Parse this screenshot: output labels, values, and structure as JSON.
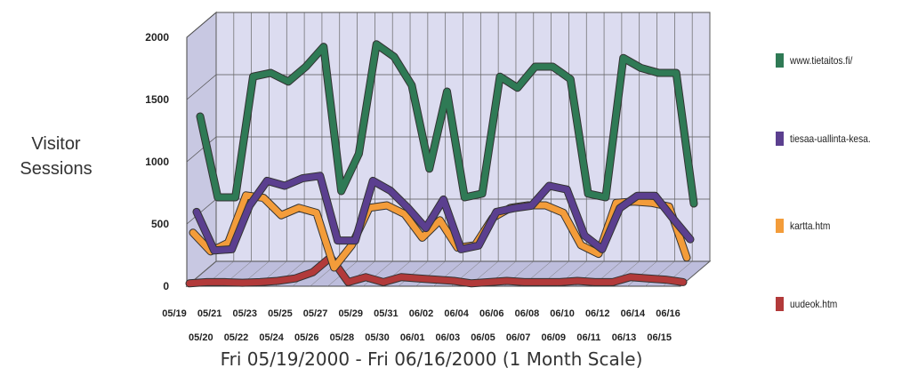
{
  "chart_data": {
    "type": "line",
    "ylabel": "Visitor\nSessions",
    "xlabel": "Fri 05/19/2000 - Fri 06/16/2000 (1 Month Scale)",
    "ylim": [
      0,
      2000
    ],
    "yticks": [
      0,
      500,
      1000,
      1500,
      2000
    ],
    "grid": true,
    "legend_position": "right",
    "style": "3d",
    "categories": [
      "05/19",
      "05/20",
      "05/21",
      "05/22",
      "05/23",
      "05/24",
      "05/25",
      "05/26",
      "05/27",
      "05/28",
      "05/29",
      "05/30",
      "05/31",
      "06/01",
      "06/02",
      "06/03",
      "06/04",
      "06/05",
      "06/06",
      "06/07",
      "06/08",
      "06/09",
      "06/10",
      "06/11",
      "06/12",
      "06/13",
      "06/14",
      "06/15",
      "06/16"
    ],
    "series": [
      {
        "name": "uudeok.htm",
        "color": "#b23a3a",
        "values": [
          10,
          20,
          20,
          15,
          20,
          30,
          50,
          100,
          220,
          20,
          60,
          20,
          60,
          50,
          40,
          30,
          10,
          20,
          30,
          20,
          20,
          20,
          30,
          20,
          20,
          60,
          50,
          40,
          20
        ]
      },
      {
        "name": "kartta.htm",
        "color": "#f39c3a",
        "values": [
          400,
          250,
          320,
          700,
          680,
          540,
          600,
          560,
          120,
          300,
          600,
          620,
          550,
          360,
          500,
          280,
          300,
          520,
          600,
          620,
          620,
          560,
          300,
          230,
          640,
          650,
          640,
          610,
          200
        ]
      },
      {
        "name": "tiesaa-uallinta-kesa",
        "color": "#5b3f8f",
        "values": [
          550,
          240,
          250,
          600,
          800,
          760,
          820,
          840,
          320,
          320,
          800,
          720,
          580,
          420,
          650,
          250,
          280,
          550,
          580,
          600,
          760,
          730,
          360,
          250,
          580,
          680,
          680,
          500,
          330
        ]
      },
      {
        "name": "www.tietaitos.fi/",
        "color": "#2f7a55",
        "values": [
          1300,
          650,
          650,
          1620,
          1650,
          1580,
          1700,
          1860,
          700,
          1000,
          1880,
          1780,
          1550,
          880,
          1500,
          650,
          680,
          1620,
          1530,
          1700,
          1700,
          1600,
          680,
          650,
          1770,
          1690,
          1650,
          1650,
          600
        ]
      }
    ],
    "legend": [
      "www.tietaitos.fi/",
      "tiesaa-uallinta-kesa.",
      "kartta.htm",
      "uudeok.htm"
    ]
  }
}
